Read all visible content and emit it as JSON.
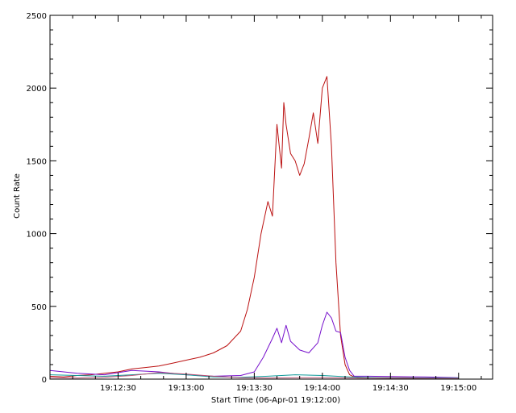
{
  "chart_data": {
    "type": "line",
    "title": "",
    "xlabel": "Start Time (06-Apr-01 19:12:00)",
    "ylabel": "Count Rate",
    "xlim": [
      "19:12:00",
      "19:15:15"
    ],
    "ylim": [
      0,
      2500
    ],
    "x_ticks": [
      "19:12:30",
      "19:13:00",
      "19:13:30",
      "19:14:00",
      "19:14:30",
      "19:15:00"
    ],
    "y_ticks": [
      0,
      500,
      1000,
      1500,
      2000,
      2500
    ],
    "grid": false,
    "legend": "none",
    "colors": {
      "axis": "#000000",
      "series_red": "#bb1111",
      "series_purple": "#7711cc",
      "series_teal": "#119999",
      "series_pink": "#bb5577"
    },
    "series": [
      {
        "color": "#bb1111",
        "x": [
          "19:12:00",
          "19:12:06",
          "19:12:12",
          "19:12:18",
          "19:12:24",
          "19:12:30",
          "19:12:36",
          "19:12:42",
          "19:12:48",
          "19:12:54",
          "19:13:00",
          "19:13:06",
          "19:13:12",
          "19:13:18",
          "19:13:24",
          "19:13:27",
          "19:13:30",
          "19:13:33",
          "19:13:36",
          "19:13:38",
          "19:13:40",
          "19:13:42",
          "19:13:43",
          "19:13:44",
          "19:13:46",
          "19:13:48",
          "19:13:50",
          "19:13:52",
          "19:13:54",
          "19:13:56",
          "19:13:58",
          "19:14:00",
          "19:14:02",
          "19:14:04",
          "19:14:06",
          "19:14:08",
          "19:14:10",
          "19:14:12",
          "19:14:14",
          "19:14:16",
          "19:14:18",
          "19:14:22",
          "19:14:30",
          "19:14:45",
          "19:15:00"
        ],
        "values": [
          20,
          15,
          25,
          30,
          40,
          50,
          70,
          80,
          90,
          110,
          130,
          150,
          180,
          230,
          330,
          480,
          700,
          1000,
          1220,
          1120,
          1750,
          1450,
          1900,
          1750,
          1550,
          1500,
          1400,
          1480,
          1650,
          1830,
          1620,
          2000,
          2080,
          1600,
          800,
          300,
          100,
          30,
          15,
          10,
          10,
          10,
          10,
          8,
          5
        ]
      },
      {
        "color": "#7711cc",
        "x": [
          "19:12:00",
          "19:12:12",
          "19:12:24",
          "19:12:36",
          "19:12:48",
          "19:13:00",
          "19:13:12",
          "19:13:24",
          "19:13:30",
          "19:13:34",
          "19:13:38",
          "19:13:40",
          "19:13:42",
          "19:13:44",
          "19:13:46",
          "19:13:50",
          "19:13:54",
          "19:13:58",
          "19:14:00",
          "19:14:02",
          "19:14:04",
          "19:14:06",
          "19:14:08",
          "19:14:10",
          "19:14:12",
          "19:14:14",
          "19:14:20",
          "19:14:30",
          "19:14:45",
          "19:15:00"
        ],
        "values": [
          60,
          40,
          30,
          60,
          50,
          30,
          20,
          25,
          50,
          150,
          280,
          350,
          250,
          370,
          260,
          200,
          180,
          250,
          370,
          460,
          420,
          330,
          320,
          150,
          60,
          20,
          20,
          18,
          15,
          10
        ]
      },
      {
        "color": "#119999",
        "x": [
          "19:12:00",
          "19:12:12",
          "19:12:24",
          "19:12:36",
          "19:12:48",
          "19:13:00",
          "19:13:12",
          "19:13:24",
          "19:13:36",
          "19:13:48",
          "19:14:00",
          "19:14:12",
          "19:14:24",
          "19:14:36",
          "19:14:48",
          "19:15:00"
        ],
        "values": [
          30,
          25,
          20,
          30,
          40,
          30,
          15,
          12,
          20,
          30,
          25,
          15,
          10,
          8,
          8,
          8
        ]
      },
      {
        "color": "#bb5577",
        "x": [
          "19:12:00",
          "19:12:12",
          "19:12:24",
          "19:12:36",
          "19:12:48",
          "19:13:00",
          "19:13:12",
          "19:13:24",
          "19:13:36",
          "19:13:48",
          "19:14:00",
          "19:14:12",
          "19:14:24",
          "19:14:36",
          "19:14:48",
          "19:15:00"
        ],
        "values": [
          10,
          8,
          12,
          25,
          45,
          35,
          20,
          10,
          8,
          10,
          10,
          8,
          6,
          5,
          5,
          5
        ]
      }
    ]
  }
}
